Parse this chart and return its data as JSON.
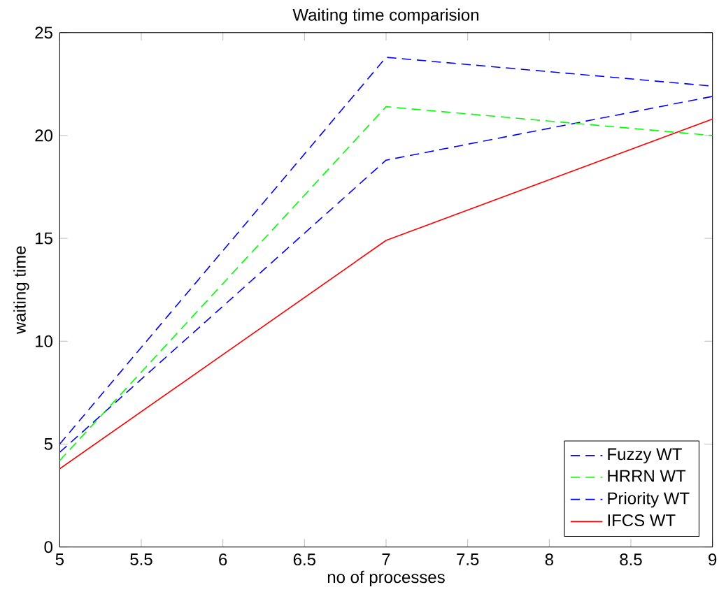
{
  "chart_data": {
    "type": "line",
    "title": "Waiting time comparision",
    "xlabel": "no of processes",
    "ylabel": "waiting time",
    "x": [
      5,
      7,
      9
    ],
    "series": [
      {
        "name": "Fuzzy WT",
        "color": "#0000ff",
        "line_style": "dashed",
        "values": [
          4.6,
          18.8,
          21.9
        ]
      },
      {
        "name": "HRRN WT",
        "color": "#00ff00",
        "line_style": "dashed",
        "values": [
          4.2,
          21.4,
          20.0
        ]
      },
      {
        "name": "Priority WT",
        "color": "#0000ff",
        "line_style": "dashed",
        "values": [
          5.0,
          23.8,
          22.4
        ]
      },
      {
        "name": "IFCS WT",
        "color": "#ff0000",
        "line_style": "solid",
        "values": [
          3.8,
          14.9,
          20.8
        ]
      }
    ],
    "xlim": [
      5,
      9
    ],
    "ylim": [
      0,
      25
    ],
    "xticks": [
      5,
      5.5,
      6,
      6.5,
      7,
      7.5,
      8,
      8.5,
      9
    ],
    "yticks": [
      0,
      5,
      10,
      15,
      20,
      25
    ],
    "legend": "bottom right"
  }
}
